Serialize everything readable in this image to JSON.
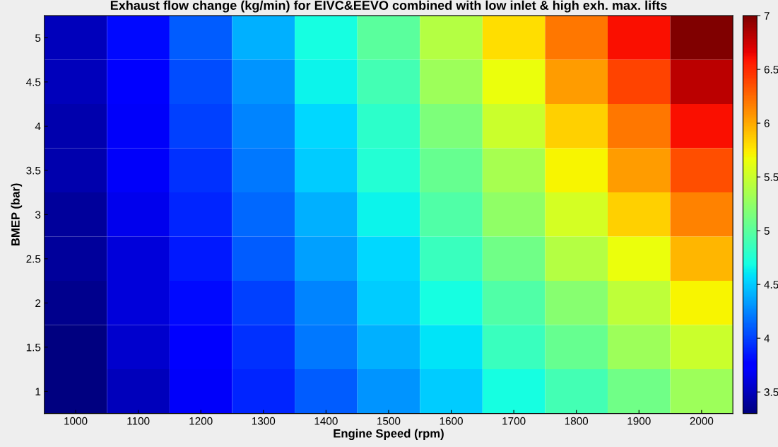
{
  "chart_data": {
    "type": "heatmap",
    "title": "Exhaust flow change (kg/min) for EIVC&EEVO combined with low inlet & high exh. max. lifts",
    "xlabel": "Engine Speed (rpm)",
    "ylabel": "BMEP (bar)",
    "categories": [
      "1000",
      "1100",
      "1200",
      "1300",
      "1400",
      "1500",
      "1600",
      "1700",
      "1800",
      "1900",
      "2000"
    ],
    "y_categories": [
      "5",
      "4.5",
      "4",
      "3.5",
      "3",
      "2.5",
      "2",
      "1.5",
      "1"
    ],
    "cells": [
      [
        3.5,
        3.8,
        4.1,
        4.4,
        4.7,
        5.0,
        5.4,
        5.8,
        6.2,
        6.6,
        7.0
      ],
      [
        3.5,
        3.75,
        4.05,
        4.3,
        4.65,
        4.9,
        5.3,
        5.65,
        6.05,
        6.4,
        6.8
      ],
      [
        3.45,
        3.7,
        4.0,
        4.25,
        4.55,
        4.8,
        5.15,
        5.5,
        5.85,
        6.2,
        6.6
      ],
      [
        3.45,
        3.7,
        3.95,
        4.2,
        4.5,
        4.75,
        5.05,
        5.35,
        5.7,
        6.05,
        6.35
      ],
      [
        3.4,
        3.65,
        3.9,
        4.15,
        4.4,
        4.65,
        4.95,
        5.25,
        5.55,
        5.85,
        6.15
      ],
      [
        3.4,
        3.6,
        3.85,
        4.1,
        4.35,
        4.55,
        4.85,
        5.1,
        5.4,
        5.65,
        5.95
      ],
      [
        3.35,
        3.6,
        3.8,
        4.0,
        4.25,
        4.5,
        4.7,
        4.95,
        5.2,
        5.45,
        5.7
      ],
      [
        3.3,
        3.55,
        3.75,
        3.95,
        4.2,
        4.4,
        4.6,
        4.85,
        5.05,
        5.3,
        5.5
      ],
      [
        3.3,
        3.5,
        3.7,
        3.9,
        4.1,
        4.3,
        4.5,
        4.7,
        4.9,
        5.1,
        5.3
      ]
    ],
    "clim": [
      3.3,
      7
    ],
    "cticks": [
      3.5,
      4,
      4.5,
      5,
      5.5,
      6,
      6.5,
      7
    ]
  }
}
